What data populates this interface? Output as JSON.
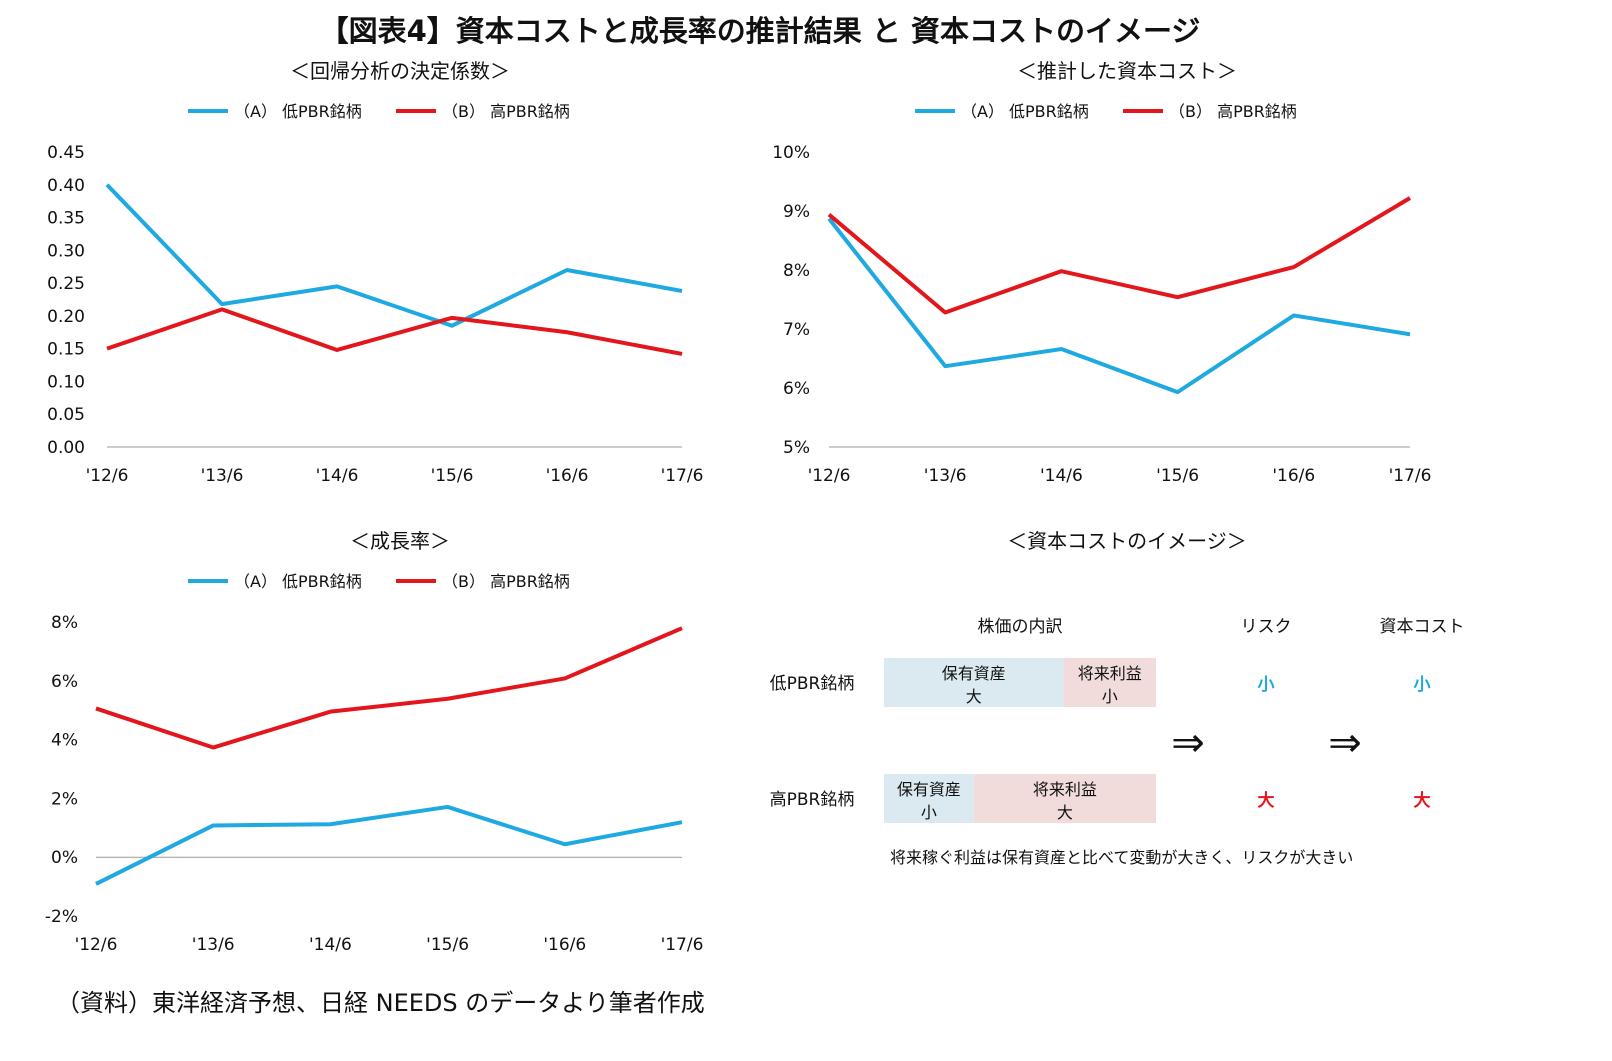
{
  "title": "【図表4】資本コストと成長率の推計結果 と 資本コストのイメージ",
  "legend": {
    "a": "（A） 低PBR銘柄",
    "b": "（B） 高PBR銘柄"
  },
  "colors": {
    "a": "#1fa9e1",
    "b": "#e3161b",
    "box_asset": "#dbeaf0",
    "box_future": "#f2dcdb"
  },
  "chart_data": [
    {
      "type": "line",
      "title": "＜回帰分析の決定係数＞",
      "categories": [
        "'12/6",
        "'13/6",
        "'14/6",
        "'15/6",
        "'16/6",
        "'17/6"
      ],
      "yticks": [
        "0.00",
        "0.05",
        "0.10",
        "0.15",
        "0.20",
        "0.25",
        "0.30",
        "0.35",
        "0.40",
        "0.45"
      ],
      "ylim": [
        0,
        0.45
      ],
      "grid": false,
      "legend": "top",
      "series": [
        {
          "name": "（A） 低PBR銘柄",
          "values": [
            0.4,
            0.218,
            0.245,
            0.185,
            0.27,
            0.238
          ]
        },
        {
          "name": "（B） 高PBR銘柄",
          "values": [
            0.15,
            0.21,
            0.148,
            0.197,
            0.175,
            0.142
          ]
        }
      ]
    },
    {
      "type": "line",
      "title": "＜推計した資本コスト＞",
      "categories": [
        "'12/6",
        "'13/6",
        "'14/6",
        "'15/6",
        "'16/6",
        "'17/6"
      ],
      "yticks": [
        "5%",
        "6%",
        "7%",
        "8%",
        "9%",
        "10%"
      ],
      "ylim": [
        5,
        10
      ],
      "grid": false,
      "legend": "top",
      "series": [
        {
          "name": "（A） 低PBR銘柄",
          "values": [
            8.87,
            6.37,
            6.66,
            5.93,
            7.23,
            6.91
          ]
        },
        {
          "name": "（B） 高PBR銘柄",
          "values": [
            8.94,
            7.28,
            7.98,
            7.54,
            8.05,
            9.22
          ]
        }
      ]
    },
    {
      "type": "line",
      "title": "＜成長率＞",
      "categories": [
        "'12/6",
        "'13/6",
        "'14/6",
        "'15/6",
        "'16/6",
        "'17/6"
      ],
      "yticks": [
        "-2%",
        "0%",
        "2%",
        "4%",
        "6%",
        "8%"
      ],
      "ylim": [
        -2,
        8
      ],
      "grid": false,
      "legend": "top",
      "series": [
        {
          "name": "（A） 低PBR銘柄",
          "values": [
            -0.91,
            1.08,
            1.12,
            1.71,
            0.44,
            1.19
          ]
        },
        {
          "name": "（B） 高PBR銘柄",
          "values": [
            5.06,
            3.73,
            4.95,
            5.39,
            6.08,
            7.79
          ]
        }
      ]
    }
  ],
  "image": {
    "title": "＜資本コストのイメージ＞",
    "headers": {
      "breakdown": "株価の内訳",
      "risk": "リスク",
      "cost": "資本コスト"
    },
    "rows": [
      {
        "label": "低PBR銘柄",
        "asset": [
          "保有資産",
          "大"
        ],
        "future": [
          "将来利益",
          "小"
        ],
        "asset_share": 0.66,
        "risk": "小",
        "cost": "小"
      },
      {
        "label": "高PBR銘柄",
        "asset": [
          "保有資産",
          "小"
        ],
        "future": [
          "将来利益",
          "大"
        ],
        "asset_share": 0.33,
        "risk": "大",
        "cost": "大"
      }
    ],
    "arrow": "⇒",
    "note": "将来稼ぐ利益は保有資産と比べて変動が大きく、リスクが大きい"
  },
  "source": "（資料）東洋経済予想、日経 NEEDS のデータより筆者作成"
}
